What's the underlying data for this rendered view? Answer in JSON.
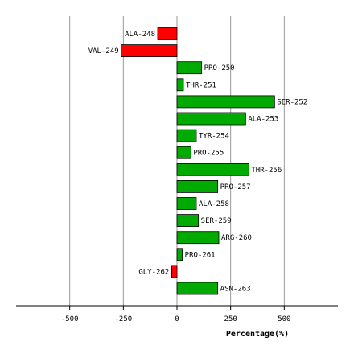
{
  "chart_data": {
    "type": "bar",
    "orientation": "horizontal",
    "xlabel": "Percentage(%)",
    "xlim": [
      -750,
      750
    ],
    "xticks": [
      -500,
      -250,
      0,
      250,
      500
    ],
    "grid": true,
    "categories": [
      "ALA-248",
      "VAL-249",
      "PRO-250",
      "THR-251",
      "SER-252",
      "ALA-253",
      "TYR-254",
      "PRO-255",
      "THR-256",
      "PRO-257",
      "ALA-258",
      "SER-259",
      "ARG-260",
      "PRO-261",
      "GLY-262",
      "ASN-263"
    ],
    "values": [
      -90,
      -260,
      115,
      30,
      455,
      320,
      90,
      65,
      335,
      190,
      90,
      100,
      195,
      25,
      -25,
      190
    ],
    "colors": {
      "positive": "#00aa00",
      "negative": "#ff0000"
    }
  }
}
